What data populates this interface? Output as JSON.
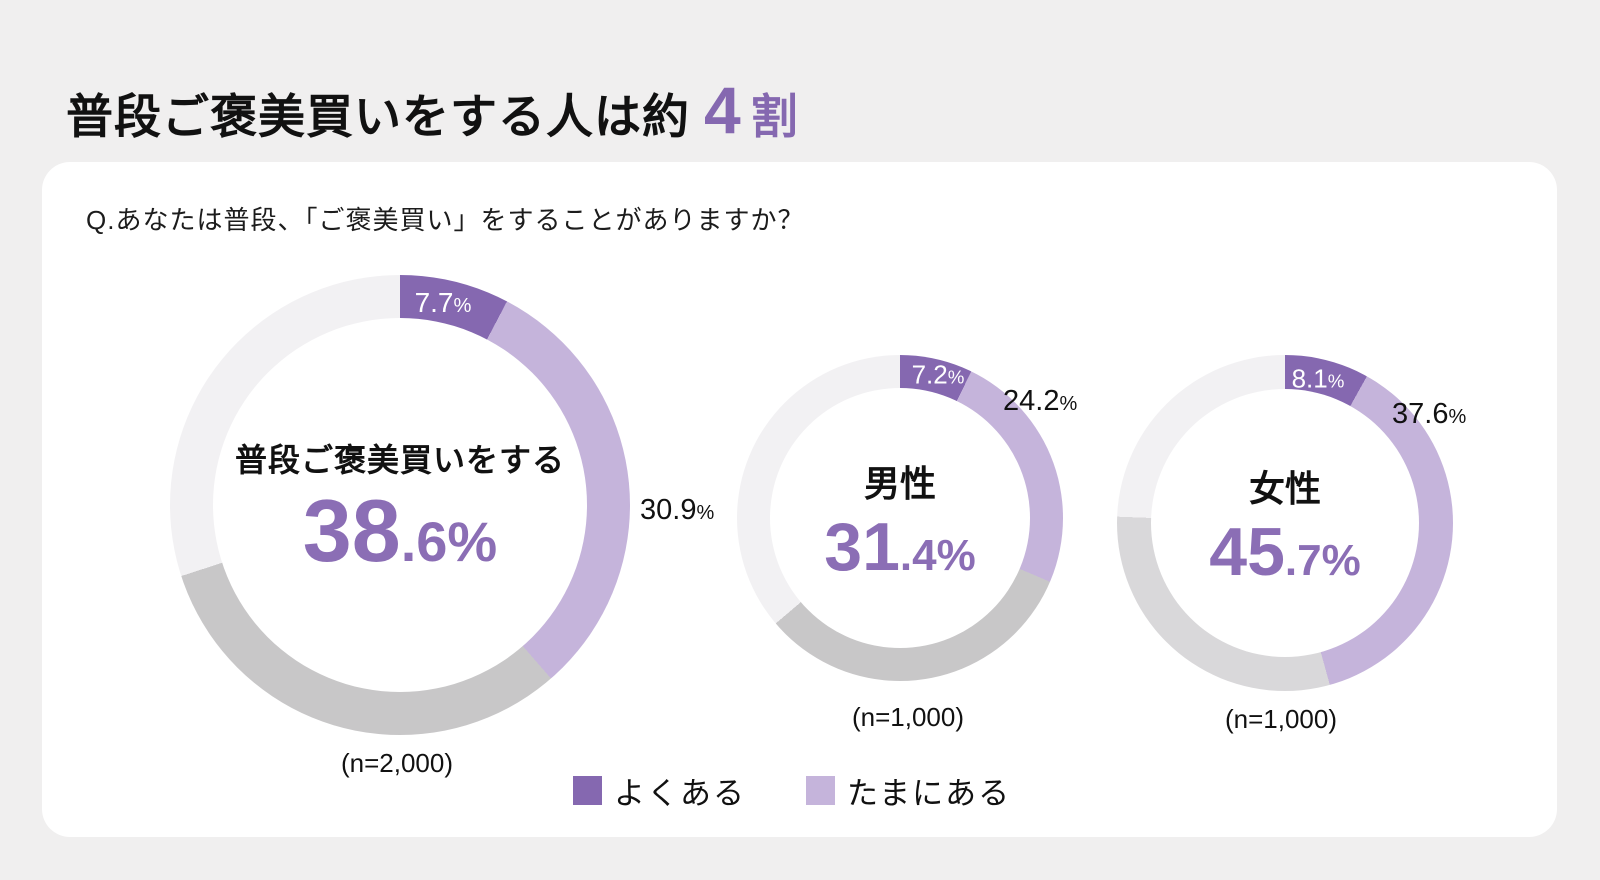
{
  "page": {
    "background_color": "#f0efef",
    "title": {
      "main": "普段ご褒美買いをする人は約",
      "accent_number": "4",
      "accent_unit": "割",
      "accent_color": "#8568b0",
      "text_color": "#111111"
    }
  },
  "card": {
    "background_color": "#ffffff",
    "question": "Q.あなたは普段、「ご褒美買い」をすることがありますか？"
  },
  "legend": {
    "items": [
      {
        "label": "よくある",
        "color": "#8568b0"
      },
      {
        "label": "たまにある",
        "color": "#c5b4db"
      }
    ]
  },
  "chart_data": [
    {
      "type": "pie",
      "subtype": "donut",
      "center_title": "普段ご褒美買いをする",
      "total_percent": 38.6,
      "total_display": {
        "big": "38",
        "rest": ".6%"
      },
      "n_label": "(n=2,000)",
      "segment_labels": {
        "inside": {
          "num": "7.7",
          "sym": "%"
        },
        "outside": {
          "num": "30.9",
          "sym": "%"
        }
      },
      "segments": [
        {
          "name": "よくある",
          "value": 7.7,
          "color": "#8568b0"
        },
        {
          "name": "たまにある",
          "value": 30.9,
          "color": "#c5b4db"
        },
        {
          "name": "unlabeled-gray",
          "value": 31.4,
          "color": "#c8c7c8",
          "estimated": true
        },
        {
          "name": "unlabeled-light-gray",
          "value": 30.0,
          "color": "#f2f1f3",
          "estimated": true
        }
      ]
    },
    {
      "type": "pie",
      "subtype": "donut",
      "center_title": "男性",
      "total_percent": 31.4,
      "total_display": {
        "big": "31",
        "rest": ".4%"
      },
      "n_label": "(n=1,000)",
      "segment_labels": {
        "inside": {
          "num": "7.2",
          "sym": "%"
        },
        "outside": {
          "num": "24.2",
          "sym": "%"
        }
      },
      "segments": [
        {
          "name": "よくある",
          "value": 7.2,
          "color": "#8568b0"
        },
        {
          "name": "たまにある",
          "value": 24.2,
          "color": "#c5b4db"
        },
        {
          "name": "unlabeled-gray",
          "value": 32.4,
          "color": "#c8c7c8",
          "estimated": true
        },
        {
          "name": "unlabeled-light-gray",
          "value": 36.2,
          "color": "#f2f1f3",
          "estimated": true
        }
      ]
    },
    {
      "type": "pie",
      "subtype": "donut",
      "center_title": "女性",
      "total_percent": 45.7,
      "total_display": {
        "big": "45",
        "rest": ".7%"
      },
      "n_label": "(n=1,000)",
      "segment_labels": {
        "inside": {
          "num": "8.1",
          "sym": "%"
        },
        "outside": {
          "num": "37.6",
          "sym": "%"
        }
      },
      "segments": [
        {
          "name": "よくある",
          "value": 8.1,
          "color": "#8568b0"
        },
        {
          "name": "たまにある",
          "value": 37.6,
          "color": "#c5b4db"
        },
        {
          "name": "unlabeled-gray",
          "value": 29.9,
          "color": "#d9d8da",
          "estimated": true
        },
        {
          "name": "unlabeled-light-gray",
          "value": 24.4,
          "color": "#f2f1f3",
          "estimated": true
        }
      ]
    }
  ]
}
